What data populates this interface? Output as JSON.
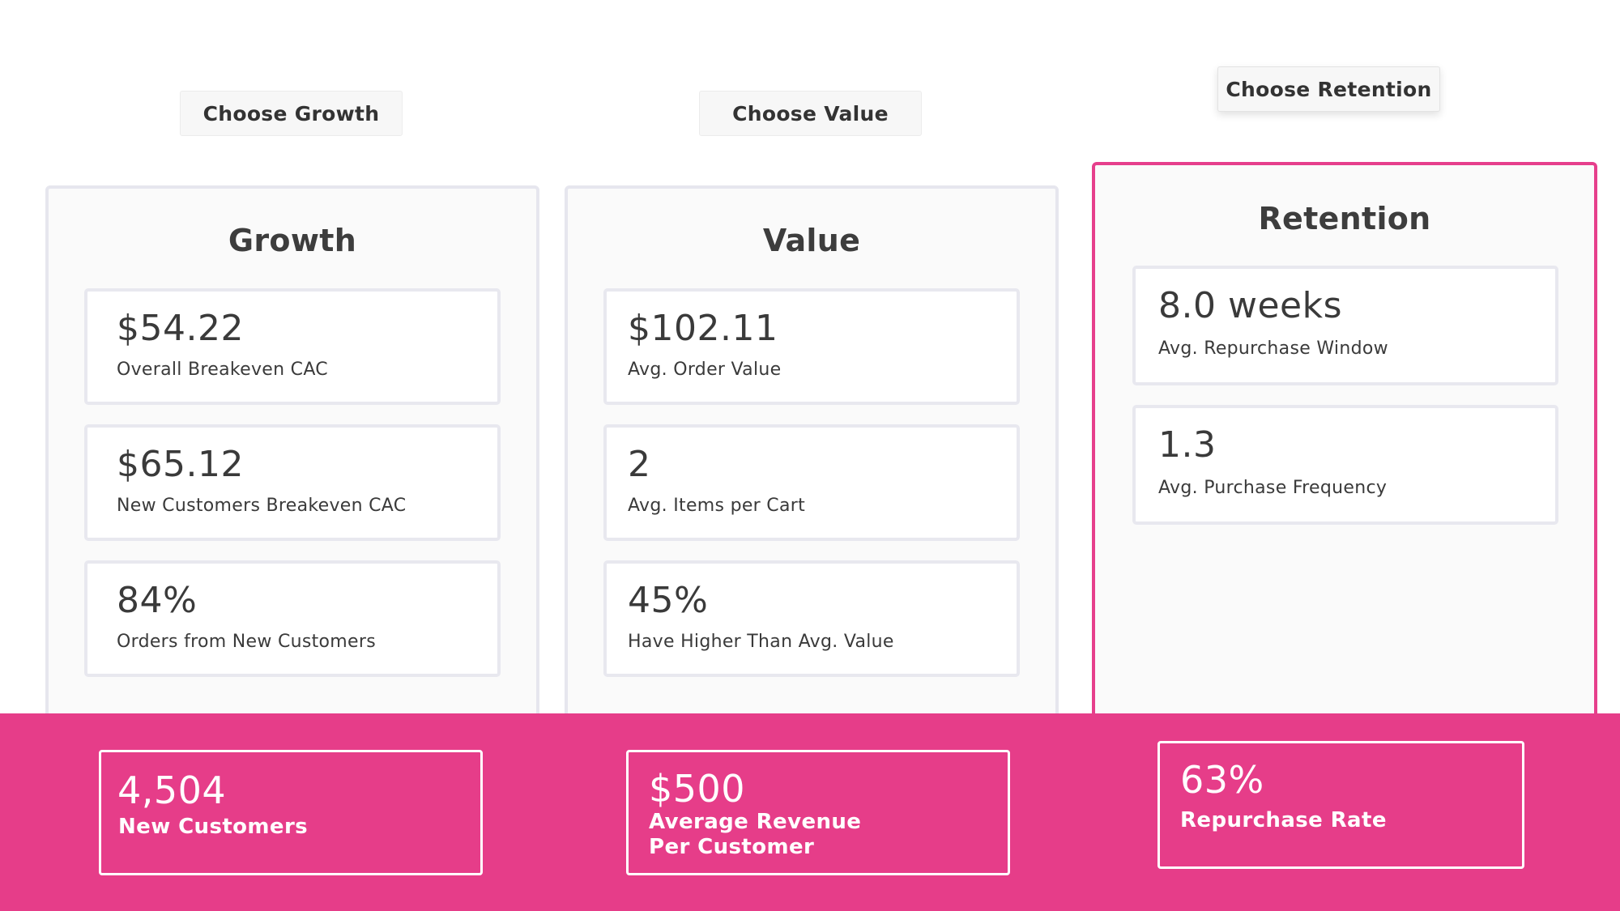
{
  "buttons": {
    "growth": "Choose Growth",
    "value": "Choose Value",
    "retention": "Choose Retention"
  },
  "selected_panel": "retention",
  "colors": {
    "accent": "#e63d89",
    "panel_border": "#e6e6ee",
    "card_border": "#e8e8ef",
    "panel_bg": "#fafafa",
    "text": "#3a3a3a"
  },
  "panels": {
    "growth": {
      "title": "Growth",
      "metrics": [
        {
          "value": "$54.22",
          "label": "Overall Breakeven CAC"
        },
        {
          "value": "$65.12",
          "label": "New Customers Breakeven CAC"
        },
        {
          "value": "84%",
          "label": "Orders from New Customers"
        }
      ]
    },
    "value": {
      "title": "Value",
      "metrics": [
        {
          "value": "$102.11",
          "label": "Avg. Order Value"
        },
        {
          "value": "2",
          "label": "Avg. Items per Cart"
        },
        {
          "value": "45%",
          "label": "Have Higher Than Avg. Value"
        }
      ]
    },
    "retention": {
      "title": "Retention",
      "metrics": [
        {
          "value": "8.0 weeks",
          "label": "Avg. Repurchase Window"
        },
        {
          "value": "1.3",
          "label": "Avg. Purchase Frequency"
        }
      ]
    }
  },
  "footer": {
    "cards": [
      {
        "value": "4,504",
        "label": "New Customers"
      },
      {
        "value": "$500",
        "label": "Average Revenue Per Customer"
      },
      {
        "value": "63%",
        "label": "Repurchase Rate"
      }
    ]
  }
}
